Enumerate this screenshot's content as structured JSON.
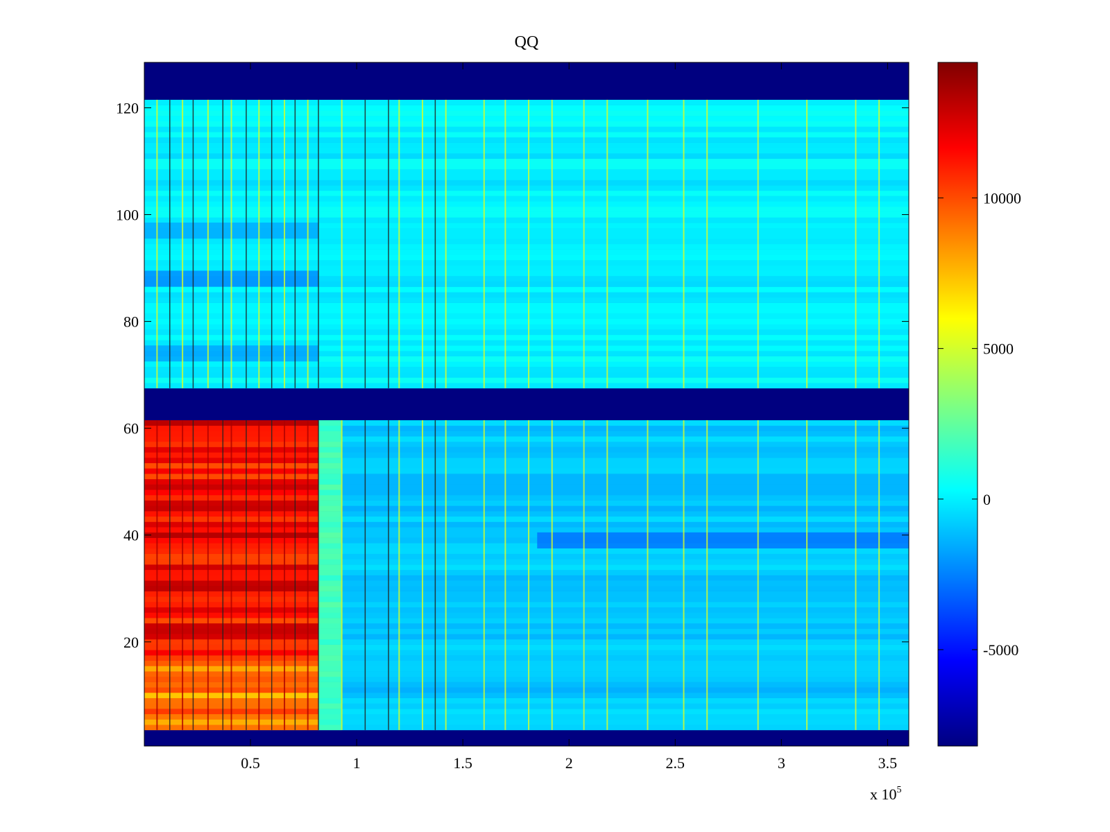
{
  "chart_data": {
    "type": "heatmap",
    "title": "QQ",
    "xlabel": "",
    "ylabel": "",
    "x_multiplier": "x 10",
    "x_multiplier_exponent": "5",
    "xlim": [
      0,
      360000
    ],
    "ylim": [
      0.5,
      128.5
    ],
    "x_ticks": [
      50000,
      100000,
      150000,
      200000,
      250000,
      300000,
      350000
    ],
    "x_tick_labels": [
      "0.5",
      "1",
      "1.5",
      "2",
      "2.5",
      "3",
      "3.5"
    ],
    "y_ticks": [
      20,
      40,
      60,
      80,
      100,
      120
    ],
    "y_tick_labels": [
      "20",
      "40",
      "60",
      "80",
      "100",
      "120"
    ],
    "colormap": "jet",
    "clim": [
      -8200,
      14500
    ],
    "colorbar_ticks": [
      -5000,
      0,
      5000,
      10000
    ],
    "colorbar_tick_labels": [
      "-5000",
      "0",
      "5000",
      "10000"
    ],
    "colorbar_location": "right",
    "grid": false,
    "background_value": -8200,
    "empty_row_bands": [
      [
        0.5,
        3.5
      ],
      [
        61.5,
        67.5
      ],
      [
        121.5,
        128.5
      ]
    ],
    "regions": [
      {
        "x_range": [
          0,
          82000
        ],
        "y_range": [
          3.5,
          16.5
        ],
        "typical_value": 8500
      },
      {
        "x_range": [
          0,
          82000
        ],
        "y_range": [
          16.5,
          61.5
        ],
        "typical_value": 11500
      },
      {
        "x_range": [
          82000,
          93000
        ],
        "y_range": [
          3.5,
          61.5
        ],
        "typical_value": 1800
      },
      {
        "x_range": [
          93000,
          360000
        ],
        "y_range": [
          3.5,
          61.5
        ],
        "typical_value": -900
      },
      {
        "x_range": [
          0,
          360000
        ],
        "y_range": [
          67.5,
          121.5
        ],
        "typical_value": 0
      }
    ],
    "dark_column_lines_x": [
      12000,
      23000,
      37000,
      48000,
      60000,
      71000,
      82000,
      104000,
      115000,
      137000
    ],
    "bright_column_lines_x": [
      6000,
      18000,
      30000,
      41000,
      54000,
      66000,
      77000,
      93000,
      120000,
      131000,
      142000,
      160000,
      170000,
      181000,
      192000,
      207000,
      218000,
      237000,
      254000,
      265000,
      289000,
      312000,
      335000,
      346000
    ],
    "low_value_row_bands": [
      {
        "y": 74,
        "x_range": [
          0,
          82000
        ],
        "value": -2000
      },
      {
        "y": 88,
        "x_range": [
          0,
          82000
        ],
        "value": -2500
      },
      {
        "y": 97,
        "x_range": [
          0,
          82000
        ],
        "value": -1800
      },
      {
        "y": 39,
        "x_range": [
          185000,
          360000
        ],
        "value": -3000
      }
    ]
  }
}
